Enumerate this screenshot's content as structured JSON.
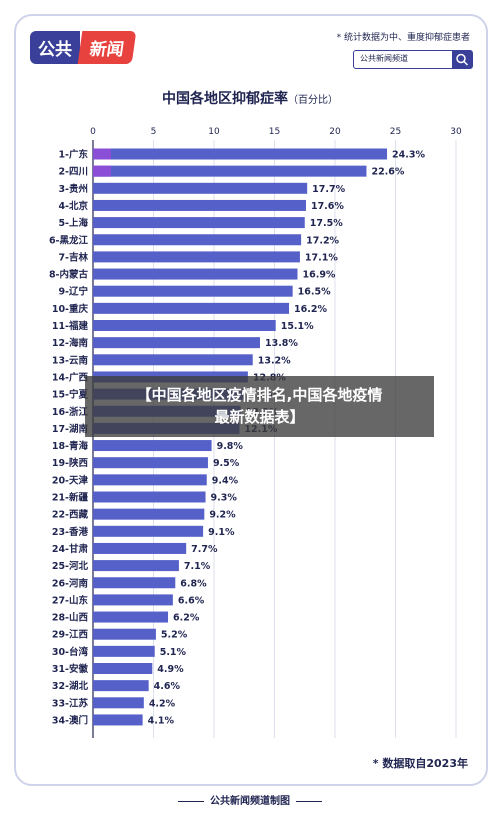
{
  "header": {
    "logo_part1": "公共",
    "logo_part2": "新闻",
    "top_note": "* 统计数据为中、重度抑郁症患者",
    "search_text": "公共新闻频道",
    "colors": {
      "brand_blue": "#3a3f9a",
      "brand_red": "#e8423f",
      "bar": "#5560c8",
      "bar_top": "#8a4fd6"
    }
  },
  "overlay": {
    "line1": "【中国各地区疫情排名,中国各地疫情",
    "line2": "最新数据表】"
  },
  "chart_data": {
    "type": "bar",
    "orientation": "horizontal",
    "title": "中国各地区抑郁症率",
    "unit_label": "（百分比）",
    "xlim": [
      0,
      30
    ],
    "x_ticks": [
      "0",
      "5",
      "10",
      "15",
      "20",
      "25",
      "30"
    ],
    "grid": true,
    "categories": [
      "1-广东",
      "2-四川",
      "3-贵州",
      "4-北京",
      "5-上海",
      "6-黑龙江",
      "7-吉林",
      "8-内蒙古",
      "9-辽宁",
      "10-重庆",
      "11-福建",
      "12-海南",
      "13-云南",
      "14-广西",
      "15-宁夏",
      "16-浙江",
      "17-湖南",
      "18-青海",
      "19-陕西",
      "20-天津",
      "21-新疆",
      "22-西藏",
      "23-香港",
      "24-甘肃",
      "25-河北",
      "26-河南",
      "27-山东",
      "28-山西",
      "29-江西",
      "30-台湾",
      "31-安徽",
      "32-湖北",
      "33-江苏",
      "34-澳门"
    ],
    "values": [
      24.3,
      22.6,
      17.7,
      17.6,
      17.5,
      17.2,
      17.1,
      16.9,
      16.5,
      16.2,
      15.1,
      13.8,
      13.2,
      12.8,
      12.5,
      12.2,
      12.1,
      9.8,
      9.5,
      9.4,
      9.3,
      9.2,
      9.1,
      7.7,
      7.1,
      6.8,
      6.6,
      6.2,
      5.2,
      5.1,
      4.9,
      4.6,
      4.2,
      4.1
    ],
    "value_labels": [
      "24.3%",
      "22.6%",
      "17.7%",
      "17.6%",
      "17.5%",
      "17.2%",
      "17.1%",
      "16.9%",
      "16.5%",
      "16.2%",
      "15.1%",
      "13.8%",
      "13.2%",
      "12.8%",
      "12.5%",
      "12.2%",
      "12.1%",
      "9.8%",
      "9.5%",
      "9.4%",
      "9.3%",
      "9.2%",
      "9.1%",
      "7.7%",
      "7.1%",
      "6.8%",
      "6.6%",
      "6.2%",
      "5.2%",
      "5.1%",
      "4.9%",
      "4.6%",
      "4.2%",
      "4.1%"
    ]
  },
  "source_note": "* 数据取自2023年",
  "footer": "公共新闻频道制图"
}
